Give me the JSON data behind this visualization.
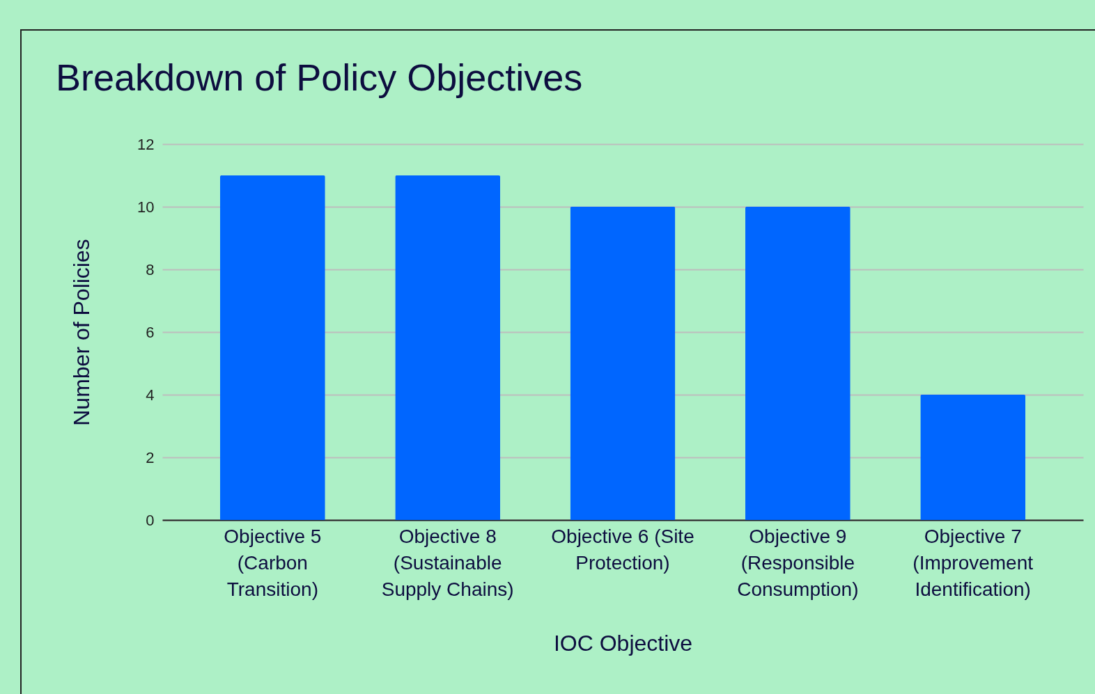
{
  "chart_data": {
    "type": "bar",
    "title": "Breakdown of Policy Objectives",
    "xlabel": "IOC Objective",
    "ylabel": "Number of Policies",
    "categories": [
      "Objective 5 (Carbon Transition)",
      "Objective 8 (Sustainable Supply Chains)",
      "Objective 6 (Site Protection)",
      "Objective 9 (Responsible Consumption)",
      "Objective 7 (Improvement Identification)"
    ],
    "values": [
      11,
      11,
      10,
      10,
      4
    ],
    "color": "#0066ff",
    "ylim": [
      0,
      12
    ],
    "yticks": [
      0,
      2,
      4,
      6,
      8,
      10,
      12
    ],
    "grid": "y"
  }
}
